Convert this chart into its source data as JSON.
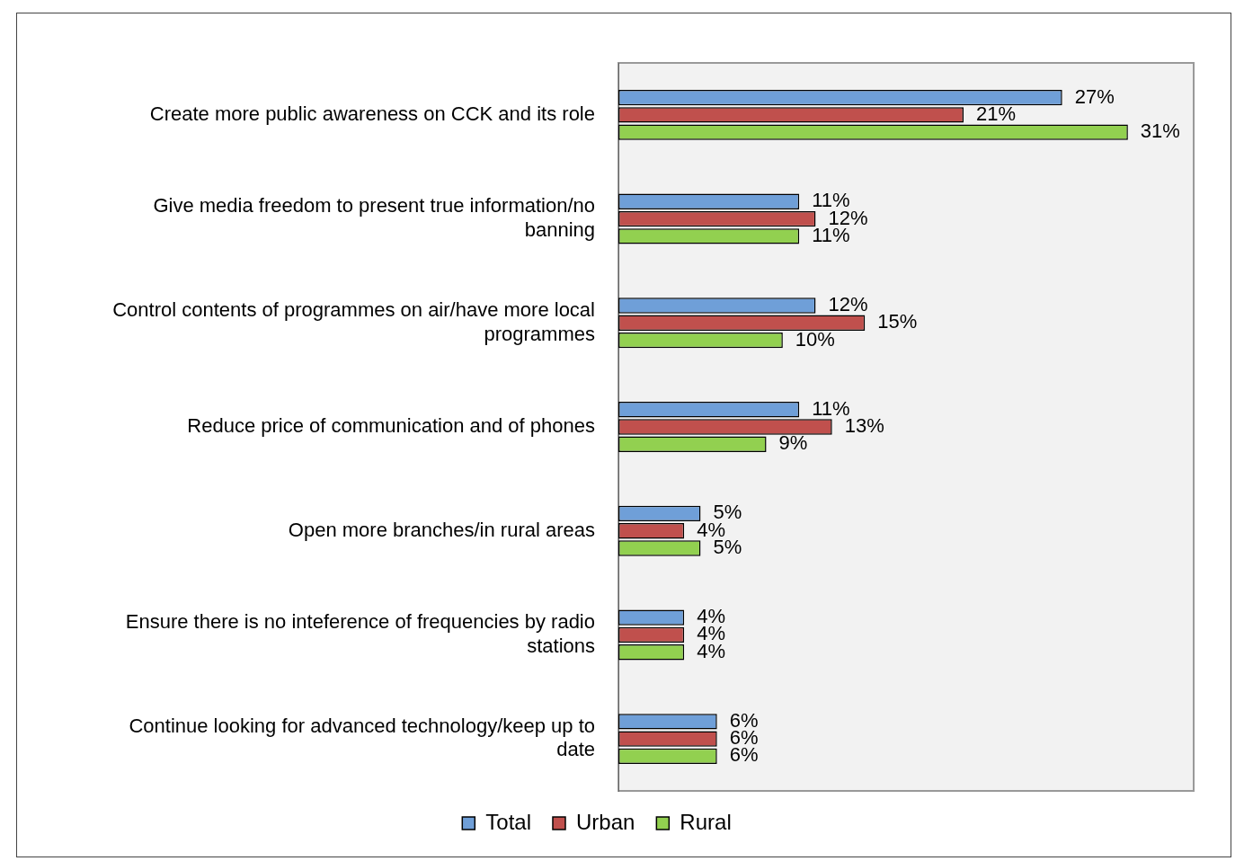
{
  "chart_data": {
    "type": "bar",
    "orientation": "horizontal",
    "categories": [
      "Create more public awareness on CCK and its role",
      "Give media freedom to present true information/no banning",
      "Control contents of programmes on air/have more local programmes",
      "Reduce price of communication and of phones",
      "Open more branches/in rural areas",
      "Ensure there is no inteference of frequencies by radio stations",
      "Continue looking for advanced technology/keep up to date"
    ],
    "series": [
      {
        "name": "Total",
        "color": "#6f9fd8",
        "values": [
          27,
          11,
          12,
          11,
          5,
          4,
          6
        ],
        "value_labels": [
          "27%",
          "11%",
          "12%",
          "11%",
          "5%",
          "4%",
          "6%"
        ]
      },
      {
        "name": "Urban",
        "color": "#c0504d",
        "values": [
          21,
          12,
          15,
          13,
          4,
          4,
          6
        ],
        "value_labels": [
          "21%",
          "12%",
          "15%",
          "13%",
          "4%",
          "4%",
          "6%"
        ]
      },
      {
        "name": "Rural",
        "color": "#92d050",
        "values": [
          31,
          11,
          10,
          9,
          5,
          4,
          6
        ],
        "value_labels": [
          "31%",
          "11%",
          "10%",
          "9%",
          "5%",
          "4%",
          "6%"
        ]
      }
    ],
    "tick_labels": "y",
    "grid": false,
    "legend": "bottom"
  }
}
